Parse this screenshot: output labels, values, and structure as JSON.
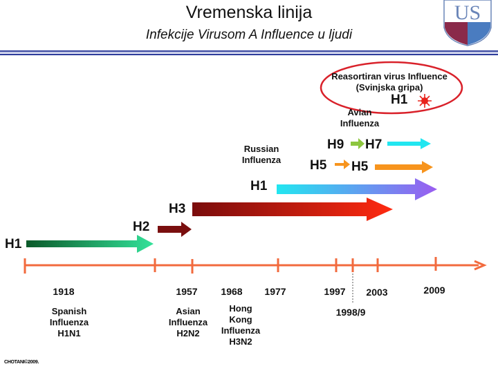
{
  "header": {
    "title": "Vremenska linija",
    "subtitle": "Infekcije Virusom A Influence u ljudi",
    "logo_text": "USU"
  },
  "colors": {
    "axis": "#f26a3d",
    "header_line": "#2b3a9a",
    "ellipse": "#d9212a"
  },
  "years": [
    "1918",
    "1957",
    "1968",
    "1977",
    "1997",
    "1998/9",
    "2003",
    "2009"
  ],
  "events": {
    "spanish": [
      "Spanish",
      "Influenza",
      "H1N1"
    ],
    "asian": [
      "Asian",
      "Influenza",
      "H2N2"
    ],
    "hongkong": [
      "Hong",
      "Kong",
      "Influenza",
      "H3N2"
    ],
    "russian": [
      "Russian",
      "Influenza"
    ],
    "avian": [
      "Avian",
      "Influenza"
    ],
    "swine": [
      "Reasortiran virus Influence",
      "(Svinjska gripa)"
    ]
  },
  "subtypes": {
    "h1_1918": "H1",
    "h2": "H2",
    "h3": "H3",
    "h1_1977": "H1",
    "h5_a": "H5",
    "h5_b": "H5",
    "h9": "H9",
    "h7": "H7",
    "h1_2009": "H1"
  },
  "footer": {
    "copyright": "CHOTANI©2009."
  }
}
